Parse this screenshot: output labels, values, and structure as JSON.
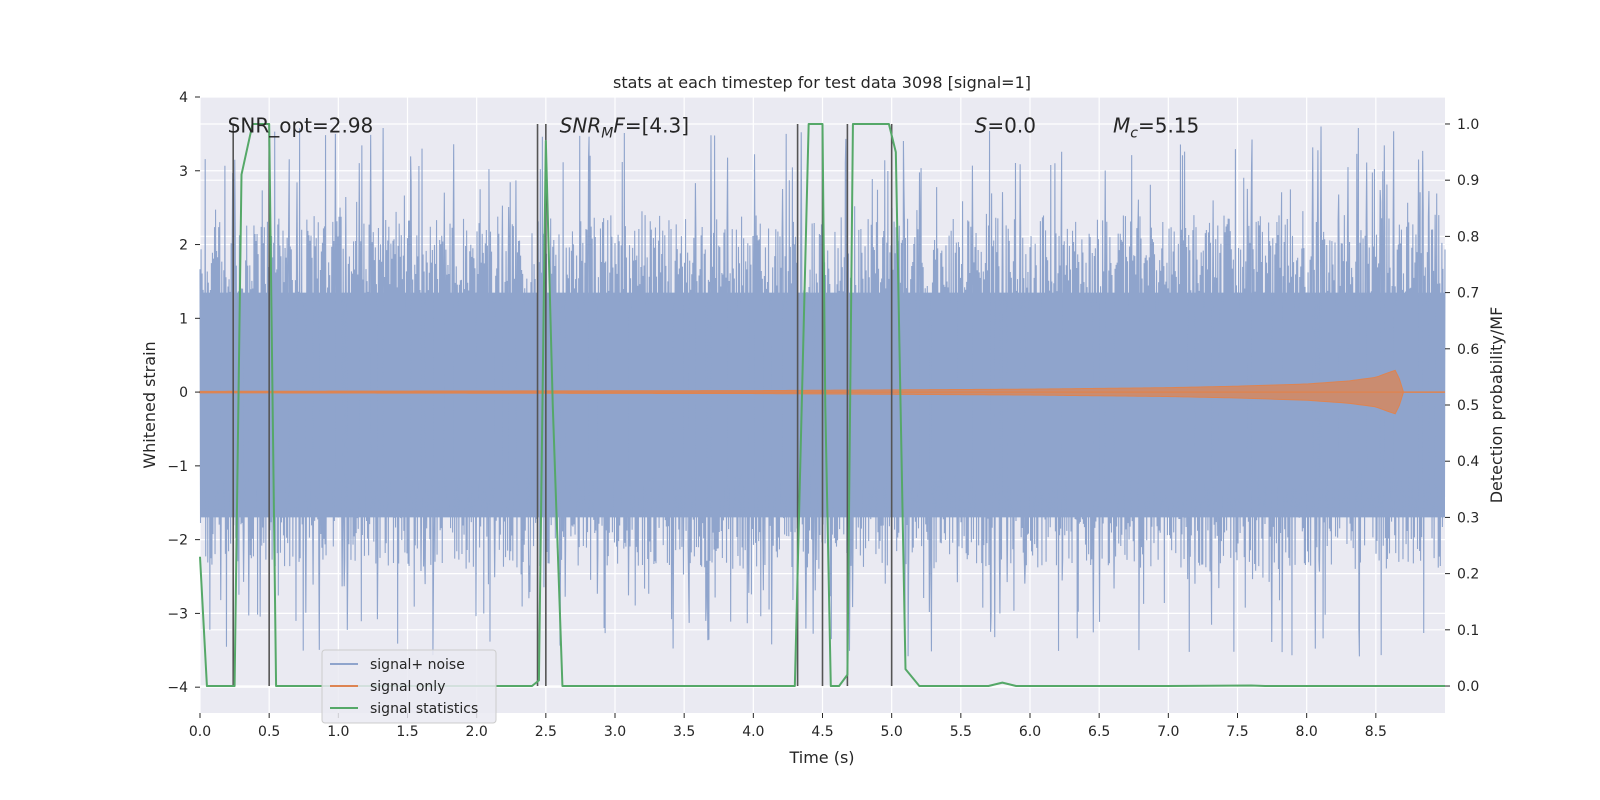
{
  "chart_data": {
    "type": "line",
    "title": "stats at each timestep for test data 3098 [signal=1]",
    "xlabel": "Time (s)",
    "ylabel": "Whitened strain",
    "y2label": "Detection probability/MF",
    "xlim": [
      0.0,
      9.0
    ],
    "ylim": [
      -4.35,
      4.0
    ],
    "y2lim": [
      -0.048,
      1.048
    ],
    "x_ticks": [
      0.0,
      0.5,
      1.0,
      1.5,
      2.0,
      2.5,
      3.0,
      3.5,
      4.0,
      4.5,
      5.0,
      5.5,
      6.0,
      6.5,
      7.0,
      7.5,
      8.0,
      8.5
    ],
    "x_tick_labels": [
      "0.0",
      "0.5",
      "1.0",
      "1.5",
      "2.0",
      "2.5",
      "3.0",
      "3.5",
      "4.0",
      "4.5",
      "5.0",
      "5.5",
      "6.0",
      "6.5",
      "7.0",
      "7.5",
      "8.0",
      "8.5"
    ],
    "y_ticks": [
      -4,
      -3,
      -2,
      -1,
      0,
      1,
      2,
      3,
      4
    ],
    "y_tick_labels": [
      "−4",
      "−3",
      "−2",
      "−1",
      "0",
      "1",
      "2",
      "3",
      "4"
    ],
    "y2_ticks": [
      0.0,
      0.1,
      0.2,
      0.3,
      0.4,
      0.5,
      0.6,
      0.7,
      0.8,
      0.9,
      1.0
    ],
    "y2_tick_labels": [
      "0.0",
      "0.1",
      "0.2",
      "0.3",
      "0.4",
      "0.5",
      "0.6",
      "0.7",
      "0.8",
      "0.9",
      "1.0"
    ],
    "grid": true,
    "legend_position": "lower-left",
    "series": [
      {
        "name": "signal+ noise",
        "axis": "left",
        "color": "#8fa4cc",
        "description": "whitened strain noise, approx. uniform band between about -1.7 and +1.4 with spikes to about +/-3.5",
        "band": [
          -1.7,
          1.35
        ],
        "spike_range": [
          -3.6,
          3.6
        ]
      },
      {
        "name": "signal only",
        "axis": "left",
        "color": "#dd8452",
        "description": "chirp signal whose amplitude grows from near zero to about 0.3 at t=8.65 s",
        "envelope": {
          "x": [
            0.0,
            4.0,
            6.0,
            7.0,
            7.5,
            8.0,
            8.3,
            8.5,
            8.6,
            8.65,
            8.7
          ],
          "amp": [
            0.01,
            0.02,
            0.04,
            0.06,
            0.08,
            0.11,
            0.15,
            0.2,
            0.27,
            0.3,
            0.0
          ]
        }
      },
      {
        "name": "signal statistics",
        "axis": "right",
        "color": "#55a868",
        "x": [
          0.0,
          0.05,
          0.25,
          0.3,
          0.38,
          0.5,
          0.55,
          0.6,
          2.4,
          2.45,
          2.5,
          2.55,
          2.62,
          4.3,
          4.35,
          4.4,
          4.5,
          4.52,
          4.56,
          4.62,
          4.68,
          4.72,
          4.8,
          4.98,
          5.03,
          5.1,
          5.2,
          5.7,
          5.8,
          5.9,
          6.0,
          7.0,
          7.6,
          7.7,
          9.0
        ],
        "values": [
          0.23,
          0.0,
          0.0,
          0.91,
          1.0,
          1.0,
          0.0,
          0.0,
          0.0,
          0.01,
          0.97,
          0.5,
          0.0,
          0.0,
          0.5,
          1.0,
          1.0,
          0.5,
          0.0,
          0.0,
          0.02,
          1.0,
          1.0,
          1.0,
          0.95,
          0.03,
          0.0,
          0.0,
          0.006,
          0.0,
          0.0,
          0.0,
          0.001,
          0.0,
          0.0
        ]
      }
    ],
    "vertical_markers": [
      0.24,
      0.5,
      2.44,
      2.5,
      4.32,
      4.5,
      4.68,
      5.0
    ],
    "annotations": [
      {
        "id": "snr-opt",
        "text": "SNR_opt=2.98",
        "x": 0.2,
        "y": 3.6
      },
      {
        "id": "snr-mf",
        "parts": [
          "SNR",
          "M",
          "F=[4.3]"
        ],
        "x": 2.6,
        "y": 3.6
      },
      {
        "id": "s-value",
        "parts": [
          "S",
          "=0.0"
        ],
        "x": 5.6,
        "y": 3.6
      },
      {
        "id": "mc-value",
        "parts": [
          "M",
          "c",
          "=5.15"
        ],
        "x": 6.6,
        "y": 3.6
      }
    ],
    "colors": {
      "plot_bg": "#eaeaf2",
      "grid": "#ffffff",
      "marker": "#555555",
      "text": "#262626"
    }
  }
}
